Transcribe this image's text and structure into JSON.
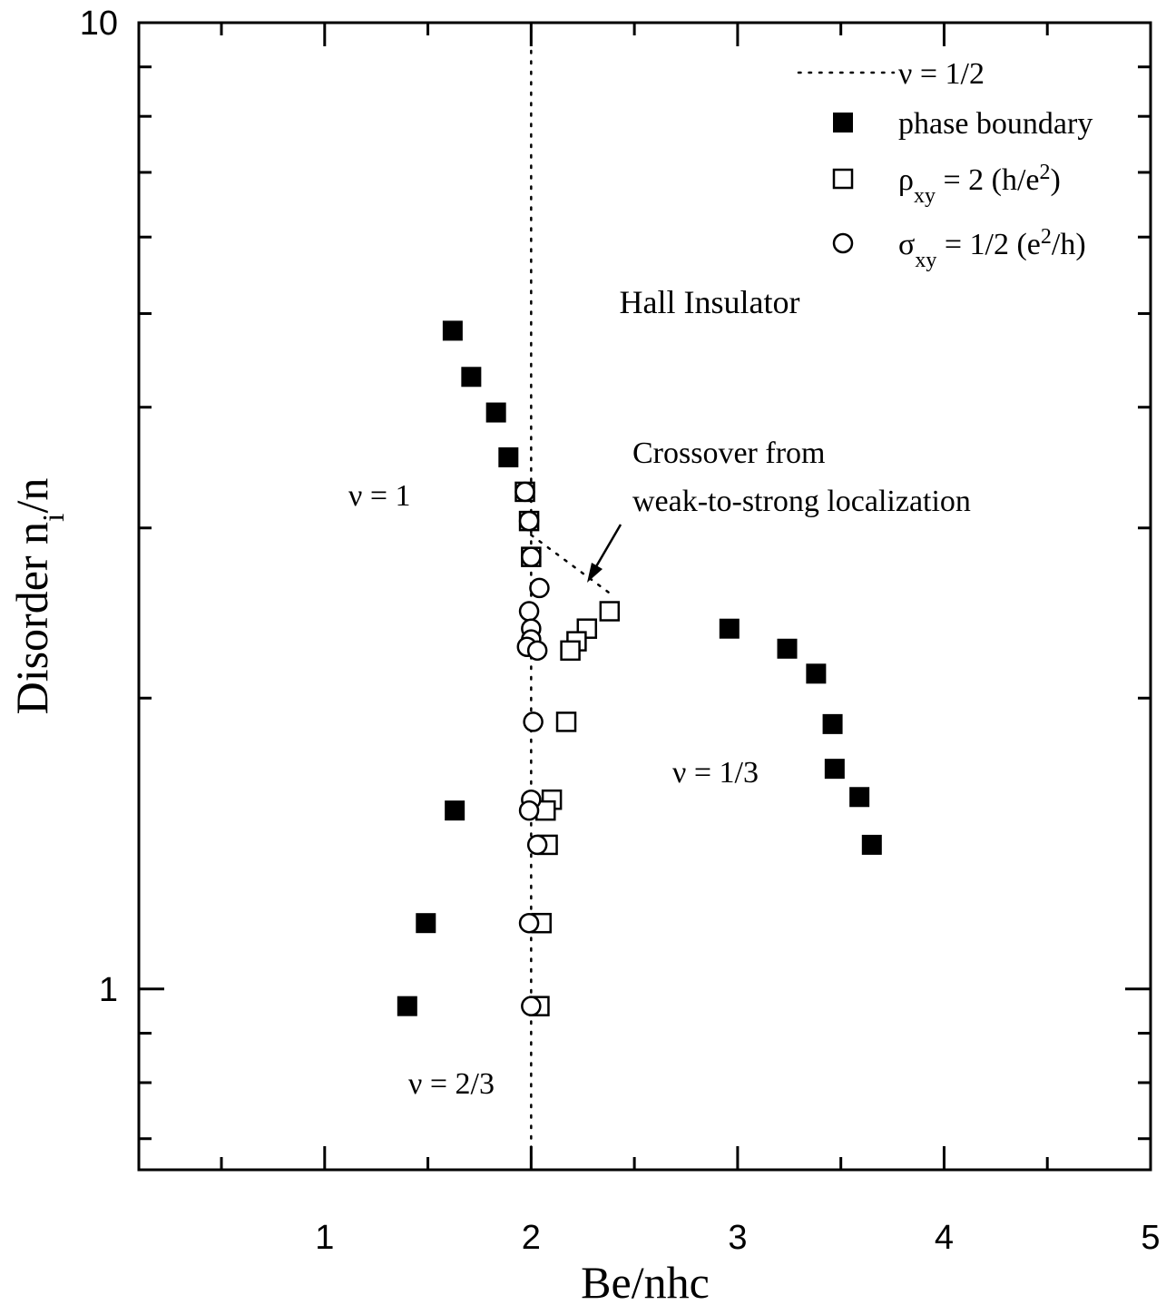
{
  "chart_data": {
    "type": "scatter",
    "xlabel": "Be/nhc",
    "ylabel": {
      "main": "Disorder n",
      "sub": "i",
      "tail": "/n"
    },
    "xlim": [
      0.1,
      5
    ],
    "ylim": [
      0.65,
      10
    ],
    "xscale": "linear",
    "yscale": "log",
    "x_ticks": [
      1,
      2,
      3,
      4,
      5
    ],
    "y_ticks": [
      1,
      10
    ],
    "grid": false,
    "legend_position": "top-right",
    "legend": [
      {
        "key": "nu_half",
        "symbol": "dotted-line",
        "parts": [
          {
            "t": "ν = 1/2"
          }
        ]
      },
      {
        "key": "phase",
        "symbol": "filled-square",
        "parts": [
          {
            "t": "phase boundary"
          }
        ]
      },
      {
        "key": "rho",
        "symbol": "open-square",
        "parts": [
          {
            "t": "ρ"
          },
          {
            "t": "xy",
            "sub": true
          },
          {
            "t": " = 2 (h/e"
          },
          {
            "t": "2",
            "sup": true
          },
          {
            "t": ")"
          }
        ]
      },
      {
        "key": "sigma",
        "symbol": "open-circle",
        "parts": [
          {
            "t": "σ"
          },
          {
            "t": "xy",
            "sub": true
          },
          {
            "t": " = 1/2 (e"
          },
          {
            "t": "2",
            "sup": true
          },
          {
            "t": "/h)"
          }
        ]
      }
    ],
    "series": [
      {
        "key": "phase",
        "marker": "filled-square",
        "points": [
          [
            1.62,
            4.8
          ],
          [
            1.71,
            4.3
          ],
          [
            1.83,
            3.95
          ],
          [
            1.89,
            3.55
          ],
          [
            1.63,
            1.53
          ],
          [
            1.49,
            1.17
          ],
          [
            1.4,
            0.96
          ],
          [
            2.96,
            2.36
          ],
          [
            3.24,
            2.25
          ],
          [
            3.38,
            2.12
          ],
          [
            3.46,
            1.88
          ],
          [
            3.47,
            1.69
          ],
          [
            3.59,
            1.58
          ],
          [
            3.65,
            1.41
          ]
        ]
      },
      {
        "key": "rho",
        "marker": "open-square",
        "points": [
          [
            1.97,
            3.27
          ],
          [
            1.99,
            3.05
          ],
          [
            2.0,
            2.8
          ],
          [
            2.38,
            2.46
          ],
          [
            2.27,
            2.36
          ],
          [
            2.22,
            2.29
          ],
          [
            2.19,
            2.24
          ],
          [
            2.17,
            1.89
          ],
          [
            2.1,
            1.57
          ],
          [
            2.07,
            1.53
          ],
          [
            2.08,
            1.41
          ],
          [
            2.05,
            1.17
          ],
          [
            2.04,
            0.96
          ]
        ]
      },
      {
        "key": "sigma",
        "marker": "open-circle",
        "points": [
          [
            1.97,
            3.27
          ],
          [
            1.99,
            3.05
          ],
          [
            2.0,
            2.8
          ],
          [
            2.04,
            2.6
          ],
          [
            1.99,
            2.46
          ],
          [
            2.0,
            2.36
          ],
          [
            2.0,
            2.3
          ],
          [
            1.98,
            2.26
          ],
          [
            2.03,
            2.24
          ],
          [
            2.01,
            1.89
          ],
          [
            2.0,
            1.57
          ],
          [
            1.99,
            1.53
          ],
          [
            2.03,
            1.41
          ],
          [
            1.99,
            1.17
          ],
          [
            2.0,
            0.96
          ]
        ]
      }
    ],
    "reference_lines": [
      {
        "key": "nu_half",
        "style": "dotted",
        "points": [
          [
            2.0,
            0.65
          ],
          [
            2.0,
            10
          ]
        ]
      },
      {
        "key": "crossover",
        "style": "dotted",
        "points": [
          [
            2.0,
            2.95
          ],
          [
            2.4,
            2.55
          ]
        ]
      }
    ],
    "annotations": [
      {
        "key": "hall",
        "text": "Hall Insulator"
      },
      {
        "key": "nu1",
        "text": "ν = 1"
      },
      {
        "key": "nu13",
        "text": "ν = 1/3"
      },
      {
        "key": "nu23",
        "text": "ν = 2/3"
      },
      {
        "key": "cross1",
        "text": "Crossover from"
      },
      {
        "key": "cross2",
        "text": "weak-to-strong localization"
      }
    ]
  }
}
